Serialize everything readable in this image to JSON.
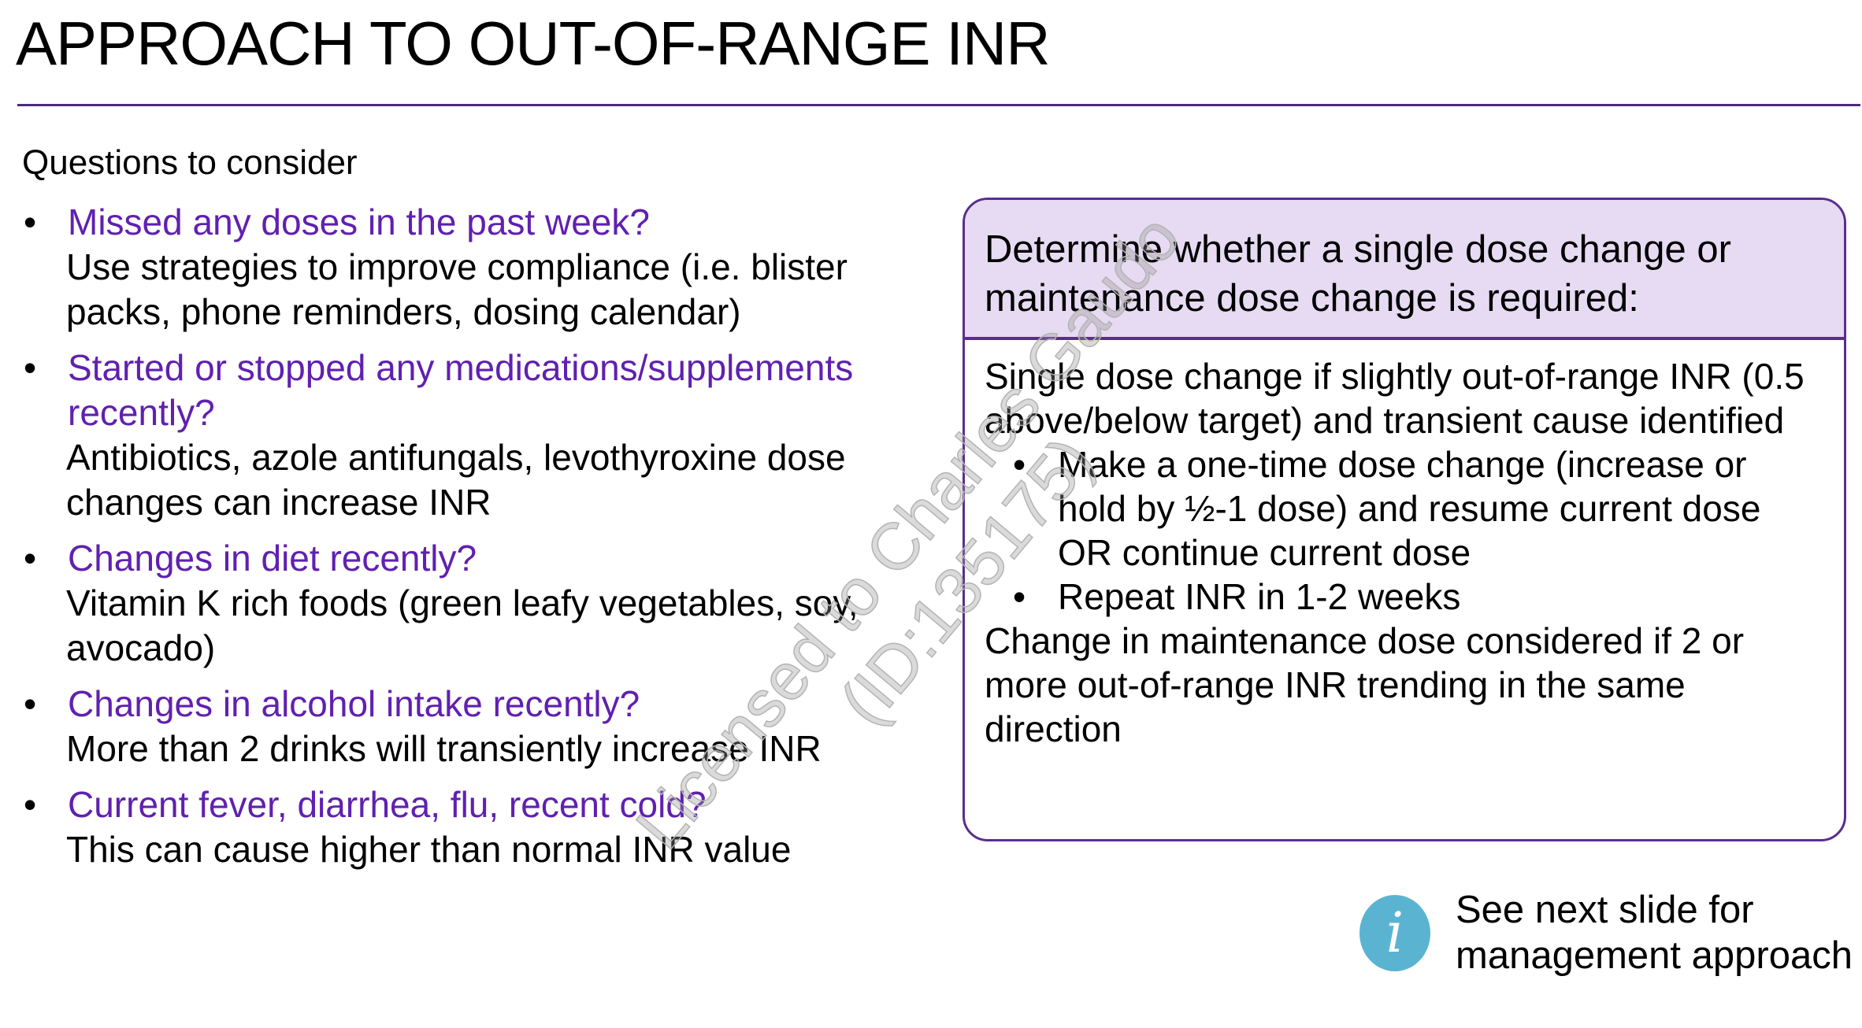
{
  "title": "APPROACH TO OUT-OF-RANGE INR",
  "left": {
    "heading": "Questions to consider",
    "items": [
      {
        "question": "Missed any doses in the past week?",
        "answer": "Use strategies to improve compliance (i.e. blister packs, phone reminders, dosing calendar)"
      },
      {
        "question": "Started or stopped any medications/supplements recently?",
        "answer": "Antibiotics, azole antifungals, levothyroxine dose changes can increase INR"
      },
      {
        "question": "Changes in diet recently?",
        "answer": "Vitamin K rich foods (green leafy vegetables, soy, avocado)"
      },
      {
        "question": "Changes in alcohol intake recently?",
        "answer": "More than 2 drinks will transiently increase INR"
      },
      {
        "question": "Current fever, diarrhea, flu, recent cold?",
        "answer": "This can cause higher than normal INR value"
      }
    ]
  },
  "box": {
    "header": "Determine whether a single dose change or maintenance dose change is required:",
    "single": "Single dose change if slightly out-of-range INR (0.5 above/below target) and transient cause identified",
    "bullets": [
      "Make a one-time dose change (increase or hold by ½-1 dose) and resume current dose OR continue current dose",
      "Repeat INR in 1-2 weeks"
    ],
    "maintenance": "Change in maintenance dose considered if 2 or more out-of-range INR trending in the same direction"
  },
  "info": {
    "icon": "info-icon",
    "glyph": "i",
    "text_line1": "See next slide for",
    "text_line2": "management approach",
    "color": "#5ab4d1"
  },
  "watermark": "Licensed to Charles Gaudo (ID:135175)",
  "colors": {
    "accent": "#5b2d8e",
    "question": "#6020b0",
    "header_fill": "#e6dbf2"
  }
}
